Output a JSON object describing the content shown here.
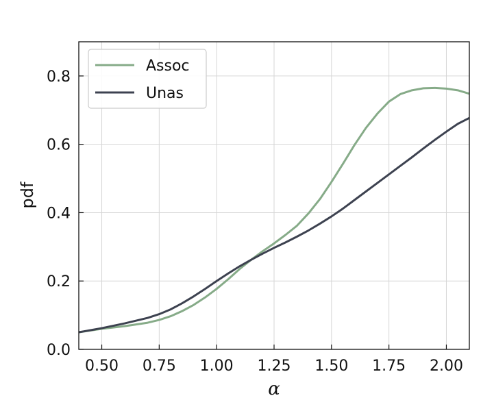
{
  "chart_data": {
    "type": "line",
    "title": "",
    "xlabel": "α",
    "ylabel": "pdf",
    "xlim": [
      0.4,
      2.1
    ],
    "ylim": [
      0.0,
      0.9
    ],
    "xticks": [
      0.5,
      0.75,
      1.0,
      1.25,
      1.5,
      1.75,
      2.0
    ],
    "xtick_labels": [
      "0.50",
      "0.75",
      "1.00",
      "1.25",
      "1.50",
      "1.75",
      "2.00"
    ],
    "yticks": [
      0.0,
      0.2,
      0.4,
      0.6,
      0.8
    ],
    "ytick_labels": [
      "0.0",
      "0.2",
      "0.4",
      "0.6",
      "0.8"
    ],
    "grid": true,
    "legend_position": "top-left",
    "series": [
      {
        "name": "Assoc",
        "color": "#86ab88",
        "x": [
          0.4,
          0.5,
          0.6,
          0.7,
          0.75,
          0.8,
          0.85,
          0.9,
          0.95,
          1.0,
          1.05,
          1.1,
          1.15,
          1.2,
          1.25,
          1.3,
          1.35,
          1.4,
          1.45,
          1.5,
          1.55,
          1.6,
          1.65,
          1.7,
          1.75,
          1.8,
          1.85,
          1.9,
          1.95,
          2.0,
          2.05,
          2.1
        ],
        "y": [
          0.05,
          0.06,
          0.068,
          0.078,
          0.086,
          0.097,
          0.112,
          0.13,
          0.152,
          0.177,
          0.205,
          0.235,
          0.262,
          0.287,
          0.31,
          0.335,
          0.362,
          0.398,
          0.44,
          0.49,
          0.543,
          0.598,
          0.648,
          0.69,
          0.725,
          0.747,
          0.758,
          0.764,
          0.765,
          0.763,
          0.758,
          0.748
        ]
      },
      {
        "name": "Unas",
        "color": "#3d4250",
        "x": [
          0.4,
          0.5,
          0.6,
          0.7,
          0.75,
          0.8,
          0.85,
          0.9,
          0.95,
          1.0,
          1.05,
          1.1,
          1.15,
          1.2,
          1.25,
          1.3,
          1.35,
          1.4,
          1.45,
          1.5,
          1.55,
          1.6,
          1.65,
          1.7,
          1.75,
          1.8,
          1.85,
          1.9,
          1.95,
          2.0,
          2.05,
          2.1
        ],
        "y": [
          0.05,
          0.062,
          0.076,
          0.092,
          0.103,
          0.117,
          0.135,
          0.155,
          0.177,
          0.2,
          0.222,
          0.243,
          0.262,
          0.28,
          0.297,
          0.313,
          0.33,
          0.348,
          0.368,
          0.389,
          0.412,
          0.437,
          0.462,
          0.487,
          0.512,
          0.537,
          0.562,
          0.588,
          0.613,
          0.637,
          0.66,
          0.677
        ]
      }
    ]
  }
}
